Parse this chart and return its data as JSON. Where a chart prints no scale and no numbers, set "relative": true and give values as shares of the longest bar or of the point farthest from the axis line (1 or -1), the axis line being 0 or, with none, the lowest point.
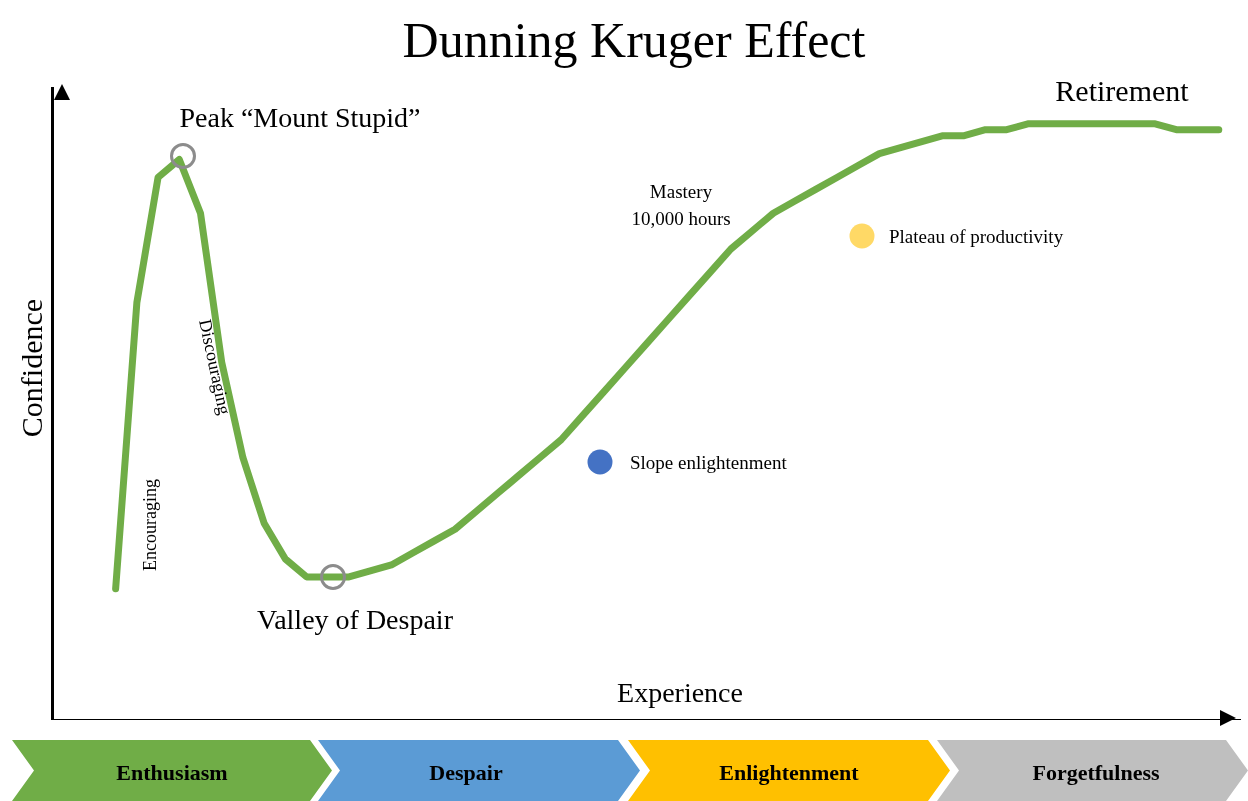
{
  "chart_data": {
    "type": "line",
    "title": "Dunning Kruger Effect",
    "xlabel": "Experience",
    "ylabel": "Confidence",
    "relative": true,
    "categories": [
      null,
      null,
      null,
      null,
      null,
      null,
      null,
      null,
      null,
      null,
      null,
      null,
      null,
      null,
      null,
      null,
      null,
      null,
      null,
      null,
      null,
      null,
      null,
      null,
      null,
      null,
      null,
      null,
      null,
      null,
      null,
      null,
      null,
      null,
      null,
      null,
      null,
      null,
      null,
      null,
      null,
      null,
      null,
      null,
      null,
      null,
      null,
      null,
      null,
      null,
      null,
      null,
      null
    ],
    "series": [
      {
        "color": "#70ad47",
        "values": [
          0.22,
          0.7,
          0.91,
          0.94,
          0.85,
          0.6,
          0.44,
          0.33,
          0.27,
          0.24,
          0.24,
          0.24,
          0.25,
          0.26,
          0.28,
          0.3,
          0.32,
          0.35,
          0.38,
          0.41,
          0.44,
          0.47,
          0.51,
          0.55,
          0.59,
          0.63,
          0.67,
          0.71,
          0.75,
          0.79,
          0.82,
          0.85,
          0.87,
          0.89,
          0.91,
          0.93,
          0.95,
          0.96,
          0.97,
          0.98,
          0.98,
          0.99,
          0.99,
          1.0,
          1.0,
          1.0,
          1.0,
          1.0,
          1.0,
          1.0,
          0.99,
          0.99,
          0.99
        ]
      }
    ],
    "annotations": [
      "Peak “Mount Stupid”",
      "Valley of Despair",
      "Encouraging",
      "Discouraging",
      "Mastery",
      "10,000 hours",
      "Slope enlightenment",
      "Plateau of productivity",
      "Retirement",
      "Enthusiasm",
      "Despair",
      "Enlightenment",
      "Forgetfulness"
    ]
  }
}
